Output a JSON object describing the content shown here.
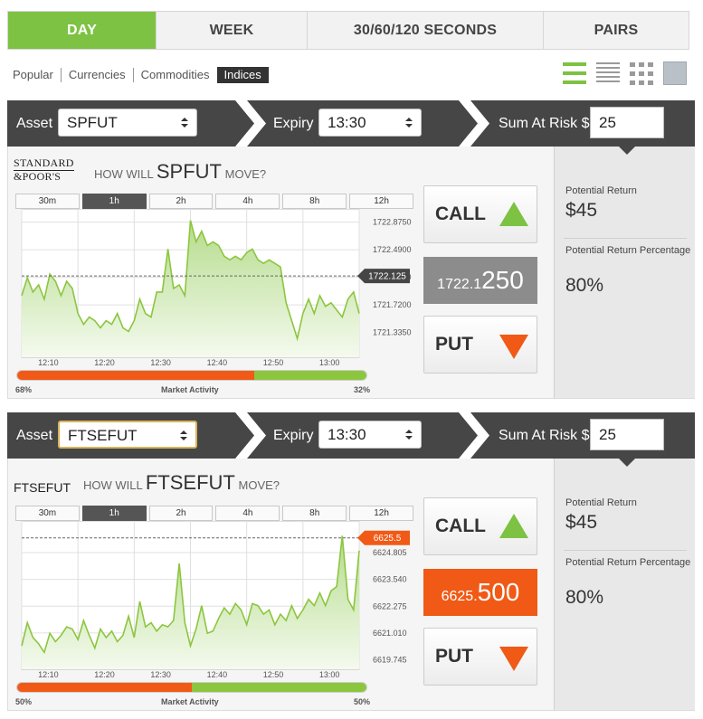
{
  "tabs": [
    {
      "label": "DAY",
      "active": true
    },
    {
      "label": "WEEK",
      "active": false
    },
    {
      "label": "30/60/120 SECONDS",
      "active": false
    },
    {
      "label": "PAIRS",
      "active": false
    }
  ],
  "submenu": [
    {
      "label": "Popular",
      "active": false
    },
    {
      "label": "Currencies",
      "active": false
    },
    {
      "label": "Commodities",
      "active": false
    },
    {
      "label": "Indices",
      "active": true
    }
  ],
  "views": [
    "list-view-large-icon",
    "list-view-small-icon",
    "grid-view-icon",
    "single-view-icon"
  ],
  "colors": {
    "green": "#7dc242",
    "orange": "#f05a16",
    "dark": "#464646",
    "grey_price": "#8c8c8c"
  },
  "labels": {
    "asset": "Asset",
    "expiry": "Expiry",
    "sum_at_risk": "Sum At Risk $",
    "how_will": "HOW WILL",
    "move": "MOVE?",
    "call": "CALL",
    "put": "PUT",
    "potential_return": "Potential Return",
    "potential_return_pct": "Potential Return Percentage",
    "market_activity": "Market Activity"
  },
  "timeframes": [
    "30m",
    "1h",
    "2h",
    "4h",
    "8h",
    "12h"
  ],
  "panels": [
    {
      "asset": "SPFUT",
      "logo_line1": "STANDARD",
      "logo_line2": "&POOR'S",
      "expiry": "13:30",
      "sum": "25",
      "active_timeframe": "1h",
      "price_prefix": "1722.1",
      "price_main": "250",
      "price_color": "#8c8c8c",
      "potential_return": "$45",
      "potential_return_pct": "80%",
      "activity_left": "68%",
      "activity_right": "32%",
      "activity_left_value": 68,
      "chart_data": {
        "type": "area",
        "x_ticks": [
          "12:10",
          "12:20",
          "12:30",
          "12:40",
          "12:50",
          "13:00"
        ],
        "y_ticks": [
          "1722.8750",
          "1722.4900",
          "1722.1050",
          "1721.7200",
          "1721.3350"
        ],
        "ylim": [
          1720.99,
          1723.06
        ],
        "xlim": [
          0,
          60
        ],
        "current_label": "1722.125",
        "current_value": 1722.125,
        "values": [
          1721.85,
          1722.1,
          1721.9,
          1722.0,
          1721.8,
          1722.15,
          1722.05,
          1721.85,
          1722.05,
          1721.95,
          1721.6,
          1721.45,
          1721.55,
          1721.5,
          1721.4,
          1721.5,
          1721.45,
          1721.6,
          1721.4,
          1721.35,
          1721.5,
          1721.8,
          1721.6,
          1721.55,
          1721.9,
          1721.9,
          1722.5,
          1721.95,
          1722.0,
          1721.85,
          1722.9,
          1722.6,
          1722.75,
          1722.55,
          1722.6,
          1722.55,
          1722.4,
          1722.35,
          1722.4,
          1722.35,
          1722.45,
          1722.5,
          1722.35,
          1722.3,
          1722.35,
          1722.3,
          1722.25,
          1721.75,
          1721.5,
          1721.25,
          1721.6,
          1721.8,
          1721.6,
          1721.85,
          1721.7,
          1721.75,
          1721.65,
          1721.55,
          1721.8,
          1721.9,
          1721.6
        ]
      }
    },
    {
      "asset": "FTSEFUT",
      "logo_line1": "",
      "logo_line2": "",
      "asset_text": "FTSEFUT",
      "expiry": "13:30",
      "sum": "25",
      "active_timeframe": "1h",
      "price_prefix": "6625.",
      "price_main": "500",
      "price_color": "#f05a16",
      "potential_return": "$45",
      "potential_return_pct": "80%",
      "activity_left": "50%",
      "activity_right": "50%",
      "activity_left_value": 50,
      "chart_data": {
        "type": "area",
        "x_ticks": [
          "12:10",
          "12:20",
          "12:30",
          "12:40",
          "12:50",
          "13:00"
        ],
        "y_ticks": [
          "6624.805",
          "6623.540",
          "6622.275",
          "6621.010",
          "6619.745"
        ],
        "ylim": [
          6619.3,
          6626.3
        ],
        "xlim": [
          0,
          60
        ],
        "current_label": "6625.5",
        "current_value": 6625.5,
        "values": [
          6620.4,
          6621.5,
          6620.8,
          6620.5,
          6620.1,
          6621.0,
          6620.6,
          6620.9,
          6621.3,
          6621.2,
          6620.7,
          6621.6,
          6620.9,
          6620.3,
          6621.2,
          6620.8,
          6621.1,
          6620.6,
          6620.9,
          6621.8,
          6620.8,
          6622.5,
          6621.3,
          6621.5,
          6621.1,
          6621.4,
          6621.3,
          6621.6,
          6624.3,
          6621.5,
          6620.4,
          6621.2,
          6622.3,
          6621.0,
          6621.1,
          6621.7,
          6622.2,
          6621.9,
          6622.4,
          6622.1,
          6621.4,
          6622.4,
          6622.3,
          6621.9,
          6622.1,
          6621.4,
          6621.9,
          6621.6,
          6622.3,
          6621.7,
          6622.1,
          6622.6,
          6622.3,
          6622.9,
          6622.3,
          6623.0,
          6623.2,
          6625.6,
          6622.6,
          6622.1,
          6624.9
        ]
      }
    }
  ]
}
